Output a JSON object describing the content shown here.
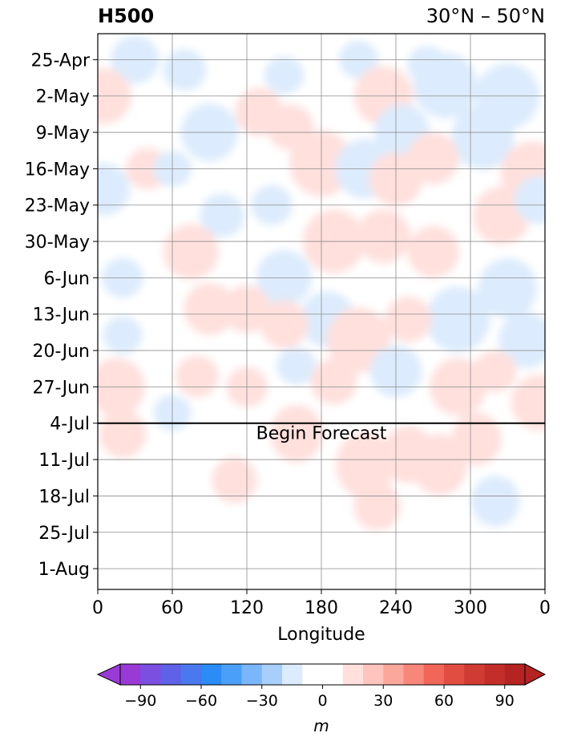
{
  "chart_data": {
    "type": "heatmap",
    "title_left": "H500",
    "title_right": "30°N – 50°N",
    "xlabel": "Longitude",
    "x_ticks": [
      "0",
      "60",
      "120",
      "180",
      "240",
      "300",
      "0"
    ],
    "x_tick_values": [
      0,
      60,
      120,
      180,
      240,
      300,
      360
    ],
    "xlim": [
      0,
      360
    ],
    "y_ticks": [
      "25-Apr",
      "2-May",
      "9-May",
      "16-May",
      "23-May",
      "30-May",
      "6-Jun",
      "13-Jun",
      "20-Jun",
      "27-Jun",
      "4-Jul",
      "11-Jul",
      "18-Jul",
      "25-Jul",
      "1-Aug"
    ],
    "ylim": [
      "2024-04-20",
      "2024-08-05"
    ],
    "grid": true,
    "forecast_start": "4-Jul",
    "forecast_label": "Begin Forecast",
    "colorbar": {
      "label": "m",
      "ticks": [
        -90,
        -60,
        -30,
        0,
        30,
        60,
        90
      ],
      "tick_labels": [
        "−90",
        "−60",
        "−30",
        "0",
        "30",
        "60",
        "90"
      ],
      "levels": [
        -100,
        -90,
        -80,
        -70,
        -60,
        -50,
        -40,
        -30,
        -20,
        -10,
        10,
        20,
        30,
        40,
        50,
        60,
        70,
        80,
        90,
        100
      ],
      "colors": [
        "#9a3ad6",
        "#7b4fe0",
        "#5f62e8",
        "#4a78ee",
        "#2a8cf4",
        "#4aa0f8",
        "#7ab6fb",
        "#a8cffc",
        "#dcebfd",
        "#ffffff",
        "#ffe0dd",
        "#ffc4bd",
        "#fba79c",
        "#f7877a",
        "#f2665a",
        "#e24d42",
        "#d03c33",
        "#c42e2a",
        "#b52322"
      ],
      "extend": "both"
    },
    "anomalies": [
      {
        "lon": 30,
        "date": "2024-04-25",
        "value": -55
      },
      {
        "lon": 70,
        "date": "2024-04-27",
        "value": -40
      },
      {
        "lon": 150,
        "date": "2024-04-28",
        "value": -30
      },
      {
        "lon": 210,
        "date": "2024-04-25",
        "value": -30
      },
      {
        "lon": 265,
        "date": "2024-04-26",
        "value": -30
      },
      {
        "lon": 5,
        "date": "2024-05-02",
        "value": 75
      },
      {
        "lon": 230,
        "date": "2024-05-02",
        "value": 85
      },
      {
        "lon": 280,
        "date": "2024-04-30",
        "value": -100
      },
      {
        "lon": 330,
        "date": "2024-05-02",
        "value": -100
      },
      {
        "lon": 310,
        "date": "2024-05-10",
        "value": -95
      },
      {
        "lon": 90,
        "date": "2024-05-09",
        "value": -80
      },
      {
        "lon": 130,
        "date": "2024-05-05",
        "value": 55
      },
      {
        "lon": 155,
        "date": "2024-05-08",
        "value": 50
      },
      {
        "lon": 245,
        "date": "2024-05-09",
        "value": -75
      },
      {
        "lon": 5,
        "date": "2024-05-20",
        "value": -65
      },
      {
        "lon": 40,
        "date": "2024-05-16",
        "value": 40
      },
      {
        "lon": 60,
        "date": "2024-05-16",
        "value": -25
      },
      {
        "lon": 180,
        "date": "2024-05-15",
        "value": 100
      },
      {
        "lon": 215,
        "date": "2024-05-16",
        "value": -85
      },
      {
        "lon": 240,
        "date": "2024-05-18",
        "value": 70
      },
      {
        "lon": 270,
        "date": "2024-05-14",
        "value": 65
      },
      {
        "lon": 350,
        "date": "2024-05-17",
        "value": 100
      },
      {
        "lon": 325,
        "date": "2024-05-25",
        "value": 80
      },
      {
        "lon": 355,
        "date": "2024-05-22",
        "value": -55
      },
      {
        "lon": 100,
        "date": "2024-05-25",
        "value": -45
      },
      {
        "lon": 140,
        "date": "2024-05-23",
        "value": -35
      },
      {
        "lon": 75,
        "date": "2024-06-01",
        "value": 75
      },
      {
        "lon": 190,
        "date": "2024-05-30",
        "value": 95
      },
      {
        "lon": 230,
        "date": "2024-05-29",
        "value": 70
      },
      {
        "lon": 270,
        "date": "2024-06-01",
        "value": 65
      },
      {
        "lon": 150,
        "date": "2024-06-06",
        "value": -75
      },
      {
        "lon": 20,
        "date": "2024-06-06",
        "value": -35
      },
      {
        "lon": 330,
        "date": "2024-06-08",
        "value": -85
      },
      {
        "lon": 290,
        "date": "2024-06-14",
        "value": -100
      },
      {
        "lon": 345,
        "date": "2024-06-18",
        "value": -75
      },
      {
        "lon": 90,
        "date": "2024-06-12",
        "value": 65
      },
      {
        "lon": 120,
        "date": "2024-06-12",
        "value": 55
      },
      {
        "lon": 185,
        "date": "2024-06-14",
        "value": -75
      },
      {
        "lon": 150,
        "date": "2024-06-15",
        "value": 55
      },
      {
        "lon": 210,
        "date": "2024-06-18",
        "value": 100
      },
      {
        "lon": 250,
        "date": "2024-06-14",
        "value": 50
      },
      {
        "lon": 20,
        "date": "2024-06-17",
        "value": -30
      },
      {
        "lon": 15,
        "date": "2024-06-27",
        "value": 80
      },
      {
        "lon": 80,
        "date": "2024-06-25",
        "value": 40
      },
      {
        "lon": 120,
        "date": "2024-06-27",
        "value": 35
      },
      {
        "lon": 160,
        "date": "2024-06-23",
        "value": -30
      },
      {
        "lon": 190,
        "date": "2024-06-26",
        "value": 50
      },
      {
        "lon": 240,
        "date": "2024-06-24",
        "value": -65
      },
      {
        "lon": 290,
        "date": "2024-06-27",
        "value": 80
      },
      {
        "lon": 320,
        "date": "2024-06-24",
        "value": 40
      },
      {
        "lon": 355,
        "date": "2024-06-30",
        "value": 75
      },
      {
        "lon": 60,
        "date": "2024-07-02",
        "value": -25
      },
      {
        "lon": 160,
        "date": "2024-07-06",
        "value": 25
      },
      {
        "lon": 215,
        "date": "2024-07-12",
        "value": 35
      },
      {
        "lon": 250,
        "date": "2024-07-10",
        "value": 25
      },
      {
        "lon": 275,
        "date": "2024-07-12",
        "value": 30
      },
      {
        "lon": 20,
        "date": "2024-07-06",
        "value": 15
      },
      {
        "lon": 110,
        "date": "2024-07-15",
        "value": 12
      },
      {
        "lon": 225,
        "date": "2024-07-20",
        "value": 15
      },
      {
        "lon": 320,
        "date": "2024-07-19",
        "value": -18
      },
      {
        "lon": 305,
        "date": "2024-07-07",
        "value": 20
      }
    ]
  }
}
